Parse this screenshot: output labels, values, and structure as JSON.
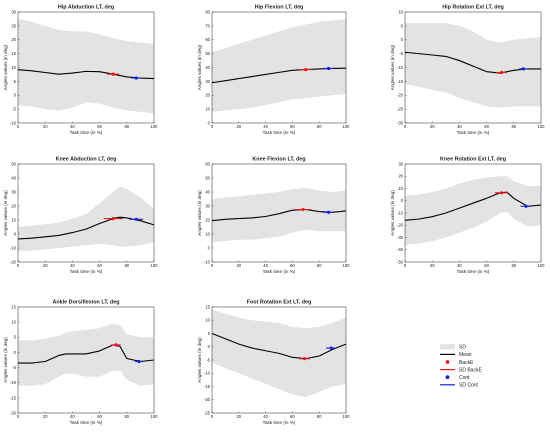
{
  "figure": {
    "colors": {
      "sd_band": "#e3e3e3",
      "mean": "#000000",
      "backe": "#e8171a",
      "cont": "#1521d6",
      "axes": "#262626",
      "grid": "#efefef"
    },
    "legend": {
      "items": [
        {
          "label": "SD",
          "type": "patch",
          "color": "#e3e3e3"
        },
        {
          "label": "Mean",
          "type": "line",
          "color": "#000000"
        },
        {
          "label": "BackE",
          "type": "dot",
          "color": "#e8171a"
        },
        {
          "label": "SD BackE",
          "type": "line",
          "color": "#e8171a"
        },
        {
          "label": "Cont",
          "type": "dot",
          "color": "#1521d6"
        },
        {
          "label": "SD Cont",
          "type": "line",
          "color": "#1521d6"
        }
      ]
    }
  },
  "chart_data": [
    {
      "type": "line",
      "title": "Hip Abduction LT, deg",
      "xlabel": "Task time (in %)",
      "ylabel": "Angles values (in deg)",
      "xlim": [
        0,
        100
      ],
      "ylim": [
        -10,
        30
      ],
      "xticks": [
        0,
        20,
        40,
        60,
        80,
        100
      ],
      "yticks": [
        -10,
        -5,
        0,
        5,
        10,
        15,
        20,
        25,
        30
      ],
      "x": [
        0,
        10,
        20,
        30,
        40,
        50,
        60,
        70,
        80,
        90,
        100
      ],
      "mean": [
        9.2,
        8.8,
        8.2,
        7.6,
        8.0,
        8.6,
        8.5,
        7.6,
        6.6,
        6.2,
        6.0
      ],
      "sd_upper": [
        27.5,
        26.5,
        25.0,
        23.5,
        23.0,
        23.0,
        22.0,
        20.5,
        19.5,
        19.0,
        18.5
      ],
      "sd_lower": [
        -3.5,
        -4.0,
        -5.0,
        -5.5,
        -4.5,
        -2.5,
        -3.0,
        -4.5,
        -5.5,
        -6.0,
        -6.5
      ],
      "backe": {
        "x": 70,
        "y": 7.6,
        "sd": 4.5
      },
      "cont": {
        "x": 87,
        "y": 6.2,
        "sd": 3.5
      }
    },
    {
      "type": "line",
      "title": "Hip Flexion LT, deg",
      "xlabel": "Task time (in %)",
      "ylabel": "Angles values (in deg)",
      "xlim": [
        0,
        100
      ],
      "ylim": [
        0,
        80
      ],
      "xticks": [
        0,
        20,
        40,
        60,
        80,
        100
      ],
      "yticks": [
        0,
        10,
        20,
        30,
        40,
        50,
        60,
        70,
        80
      ],
      "x": [
        0,
        10,
        20,
        30,
        40,
        50,
        60,
        70,
        80,
        90,
        100
      ],
      "mean": [
        29.0,
        30.5,
        32.0,
        33.5,
        35.0,
        36.5,
        38.0,
        38.5,
        39.0,
        39.3,
        39.5
      ],
      "sd_upper": [
        51,
        54,
        57,
        60,
        63,
        66,
        69,
        71,
        73,
        74,
        75
      ],
      "sd_lower": [
        8,
        9,
        10,
        11,
        13,
        15,
        17,
        18,
        19,
        20,
        21
      ],
      "backe": {
        "x": 70,
        "y": 38.5,
        "sd": 5
      },
      "cont": {
        "x": 87,
        "y": 39.3,
        "sd": 4
      }
    },
    {
      "type": "line",
      "title": "Hip Rotation Ext LT, deg",
      "xlabel": "Task time (in %)",
      "ylabel": "Angles values (in deg)",
      "xlim": [
        0,
        100
      ],
      "ylim": [
        -30,
        10
      ],
      "xticks": [
        0,
        20,
        40,
        60,
        80,
        100
      ],
      "yticks": [
        -30,
        -25,
        -20,
        -15,
        -10,
        -5,
        0,
        5,
        10
      ],
      "x": [
        0,
        10,
        20,
        30,
        40,
        50,
        60,
        70,
        80,
        90,
        100
      ],
      "mean": [
        -4.5,
        -5.0,
        -5.5,
        -6.0,
        -7.5,
        -9.5,
        -11.5,
        -12.0,
        -11.0,
        -10.5,
        -10.5
      ],
      "sd_upper": [
        6,
        6,
        6,
        6,
        5,
        3,
        0,
        -1,
        0,
        0.5,
        1
      ],
      "sd_lower": [
        -16,
        -17,
        -18,
        -19,
        -21,
        -22.5,
        -24,
        -24.5,
        -24,
        -24,
        -24
      ],
      "backe": {
        "x": 71,
        "y": -11.8,
        "sd": 4
      },
      "cont": {
        "x": 87,
        "y": -10.5,
        "sd": 3
      }
    },
    {
      "type": "line",
      "title": "Knee Abduction LT, deg",
      "xlabel": "Task time (in %)",
      "ylabel": "Angles values (in deg)",
      "xlim": [
        0,
        100
      ],
      "ylim": [
        -20,
        50
      ],
      "xticks": [
        0,
        20,
        40,
        60,
        80,
        100
      ],
      "yticks": [
        -20,
        -10,
        0,
        10,
        20,
        30,
        40,
        50
      ],
      "x": [
        0,
        10,
        20,
        30,
        40,
        50,
        60,
        70,
        75,
        80,
        90,
        100
      ],
      "mean": [
        -3.5,
        -3.0,
        -2.0,
        -1.0,
        1.0,
        3.5,
        7.5,
        11.0,
        12.0,
        11.5,
        9.5,
        6.5
      ],
      "sd_upper": [
        5,
        6,
        7,
        8,
        11,
        14,
        22,
        30,
        34,
        32,
        26,
        18
      ],
      "sd_lower": [
        -12,
        -12,
        -11,
        -10,
        -9,
        -8,
        -7,
        -8,
        -9,
        -9,
        -8,
        -6
      ],
      "backe": {
        "x": 70,
        "y": 11.0,
        "sd": 7
      },
      "cont": {
        "x": 87,
        "y": 10.5,
        "sd": 5
      }
    },
    {
      "type": "line",
      "title": "Knee Flexion LT, deg",
      "xlabel": "Task time (in %)",
      "ylabel": "Angles values (in deg)",
      "xlim": [
        0,
        100
      ],
      "ylim": [
        -10,
        60
      ],
      "xticks": [
        0,
        20,
        40,
        60,
        80,
        100
      ],
      "yticks": [
        -10,
        0,
        10,
        20,
        30,
        40,
        50,
        60
      ],
      "x": [
        0,
        10,
        20,
        30,
        40,
        50,
        60,
        70,
        80,
        90,
        100
      ],
      "mean": [
        19.5,
        20.5,
        21.0,
        21.5,
        22.5,
        24.5,
        27.0,
        27.5,
        26.0,
        25.5,
        26.5
      ],
      "sd_upper": [
        35,
        36,
        37,
        38,
        39,
        40,
        42,
        43,
        41,
        40,
        41
      ],
      "sd_lower": [
        4,
        5,
        6,
        6,
        7,
        8,
        11,
        13,
        12,
        12,
        12
      ],
      "backe": {
        "x": 68,
        "y": 27.5,
        "sd": 6
      },
      "cont": {
        "x": 87,
        "y": 25.5,
        "sd": 4
      }
    },
    {
      "type": "line",
      "title": "Knee Rotation Ext LT, deg",
      "xlabel": "Task time (in %)",
      "ylabel": "Angles values (in deg)",
      "xlim": [
        0,
        100
      ],
      "ylim": [
        -50,
        30
      ],
      "xticks": [
        0,
        20,
        40,
        60,
        80,
        100
      ],
      "yticks": [
        -50,
        -40,
        -30,
        -20,
        -10,
        0,
        10,
        20,
        30
      ],
      "x": [
        0,
        10,
        20,
        30,
        40,
        50,
        60,
        70,
        75,
        80,
        90,
        100
      ],
      "mean": [
        -16,
        -15,
        -13,
        -10,
        -6,
        -2,
        2,
        6.5,
        7,
        2,
        -4.5,
        -3.5
      ],
      "sd_upper": [
        4,
        5,
        7,
        10,
        14,
        17,
        19,
        20,
        20,
        16,
        12,
        12
      ],
      "sd_lower": [
        -36,
        -35,
        -33,
        -30,
        -26,
        -22,
        -17,
        -10,
        -9,
        -15,
        -21,
        -20
      ],
      "backe": {
        "x": 71,
        "y": 6.5,
        "sd": 5
      },
      "cont": {
        "x": 89,
        "y": -4.5,
        "sd": 4
      }
    },
    {
      "type": "line",
      "title": "Ankle Dorsiflexion LT, deg",
      "xlabel": "Task time (in %)",
      "ylabel": "Angles values (in deg)",
      "xlim": [
        0,
        100
      ],
      "ylim": [
        -20,
        15
      ],
      "xticks": [
        0,
        20,
        40,
        60,
        80,
        100
      ],
      "yticks": [
        -20,
        -15,
        -10,
        -5,
        0,
        5,
        10,
        15
      ],
      "x": [
        0,
        10,
        20,
        30,
        35,
        40,
        50,
        60,
        70,
        75,
        80,
        90,
        100
      ],
      "mean": [
        -3.5,
        -3.5,
        -3.0,
        -1.0,
        -0.5,
        -0.5,
        -0.5,
        0.5,
        2.5,
        2.0,
        -2.0,
        -3.0,
        -2.5
      ],
      "sd_upper": [
        4,
        4,
        4.5,
        5.5,
        6.5,
        7,
        7.5,
        8,
        9.5,
        9,
        6,
        5,
        5
      ],
      "sd_lower": [
        -11,
        -11,
        -10.5,
        -8,
        -7,
        -7,
        -8,
        -8,
        -6,
        -6,
        -9,
        -11,
        -10.5
      ],
      "backe": {
        "x": 72,
        "y": 2.5,
        "sd": 3.5
      },
      "cont": {
        "x": 89,
        "y": -3.0,
        "sd": 3
      }
    },
    {
      "type": "line",
      "title": "Foot Rotation Ext LT, deg",
      "xlabel": "Task time (in %)",
      "ylabel": "Angles values (in deg)",
      "xlim": [
        0,
        100
      ],
      "ylim": [
        -25,
        15
      ],
      "xticks": [
        0,
        20,
        40,
        60,
        80,
        100
      ],
      "yticks": [
        -25,
        -20,
        -15,
        -10,
        -5,
        0,
        5,
        10,
        15
      ],
      "x": [
        0,
        10,
        20,
        30,
        40,
        50,
        60,
        70,
        80,
        90,
        100
      ],
      "mean": [
        5,
        3,
        1,
        -0.5,
        -1.5,
        -2.5,
        -4,
        -4.5,
        -3.5,
        -1,
        1
      ],
      "sd_upper": [
        14,
        12.5,
        11,
        10,
        9.5,
        9,
        7.5,
        7,
        7.5,
        9,
        11
      ],
      "sd_lower": [
        -6,
        -8,
        -10,
        -12,
        -14,
        -16,
        -18,
        -19,
        -17,
        -15,
        -14
      ],
      "backe": {
        "x": 69,
        "y": -4.5,
        "sd": 4
      },
      "cont": {
        "x": 89,
        "y": -0.5,
        "sd": 4
      }
    }
  ]
}
